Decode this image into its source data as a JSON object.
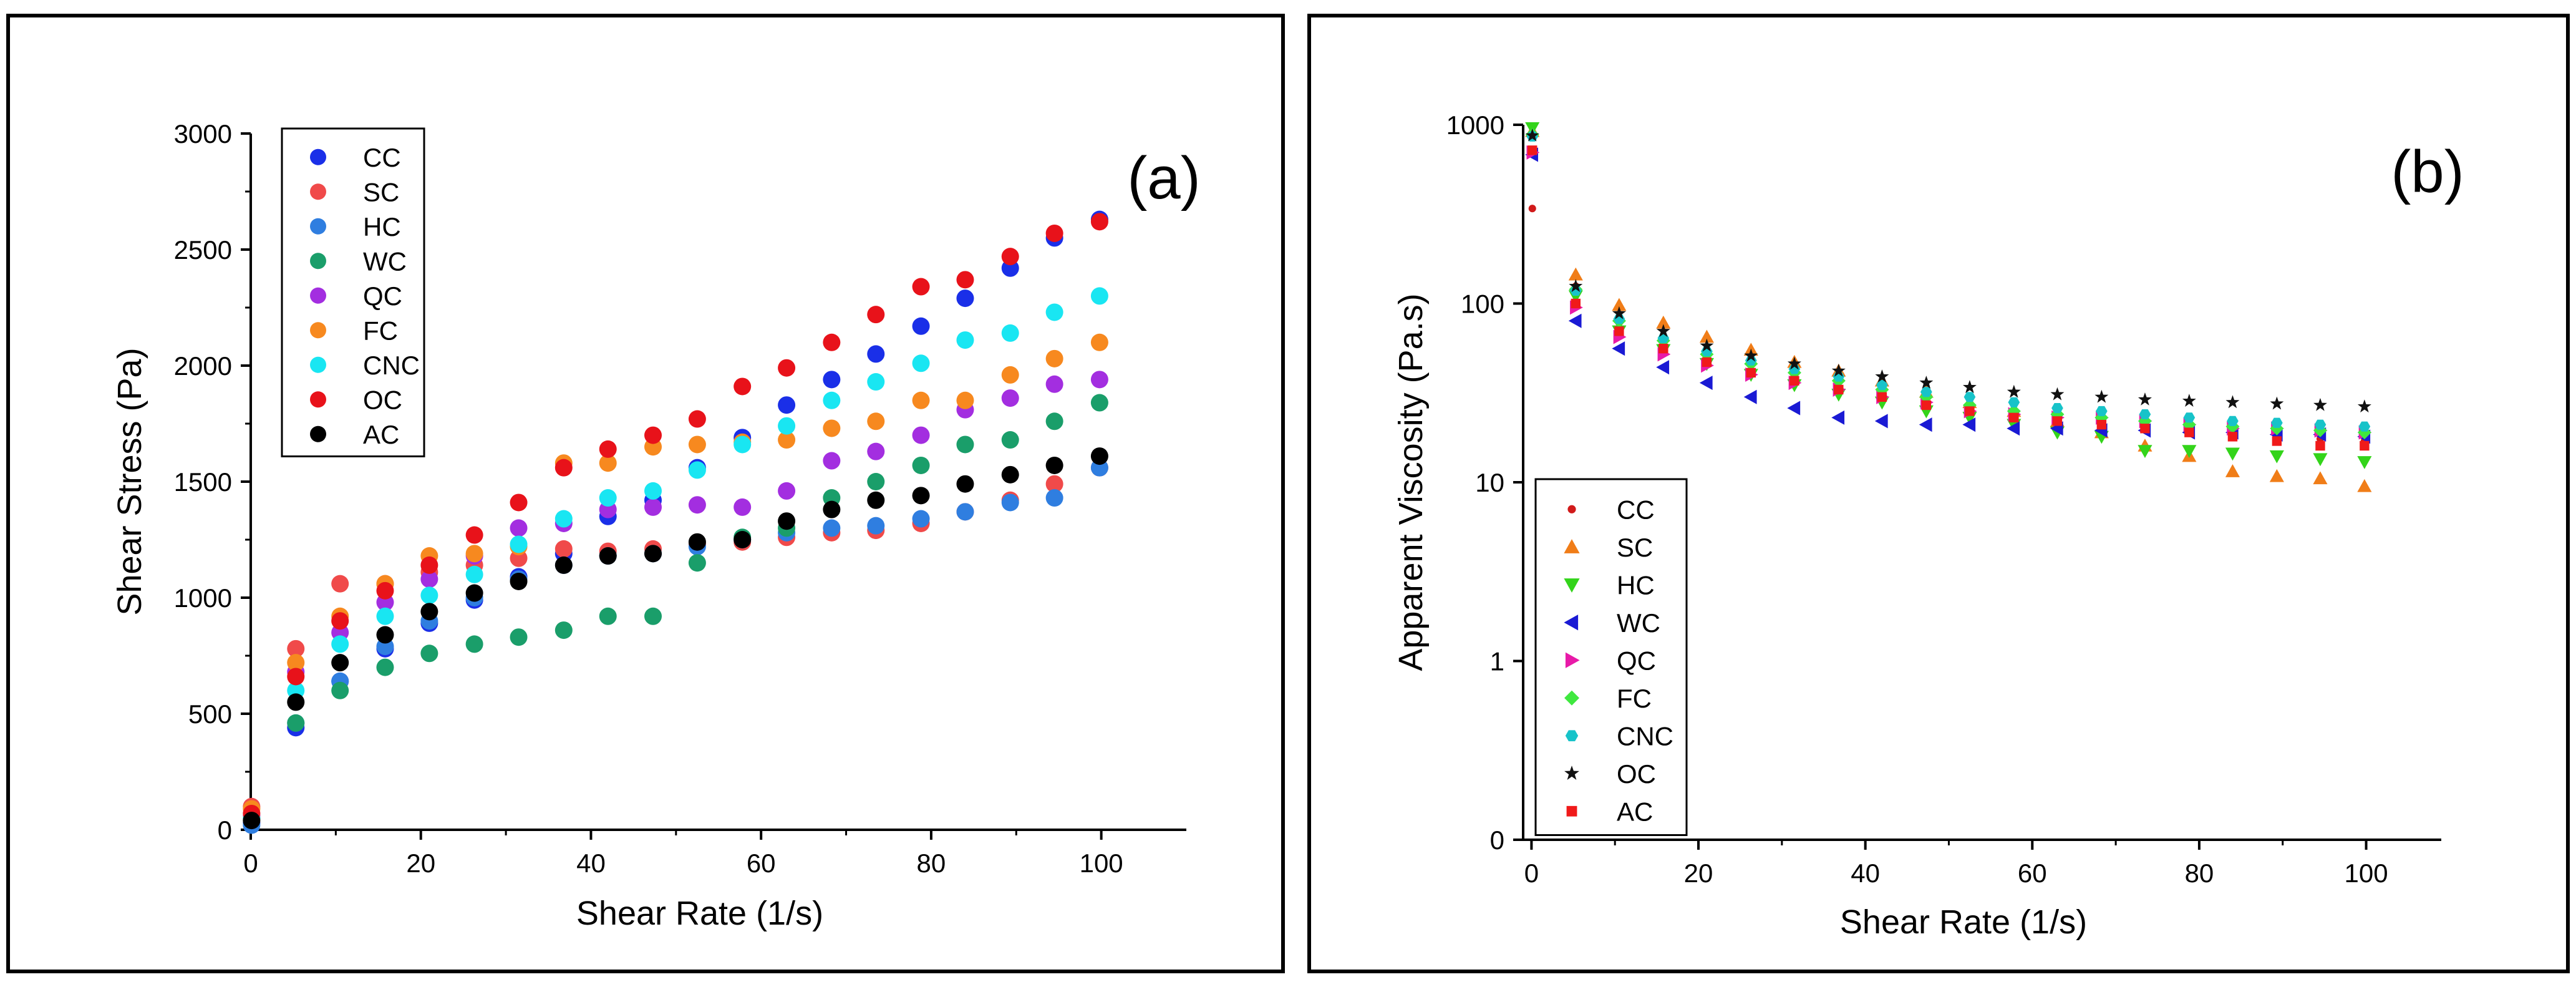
{
  "chart_data": [
    {
      "type": "scatter",
      "panel_label": "(a)",
      "xlabel": "Shear Rate (1/s)",
      "ylabel": "Shear Stress (Pa)",
      "xlim": [
        0,
        110
      ],
      "ylim": [
        0,
        3000
      ],
      "xticks": [
        0,
        20,
        40,
        60,
        80,
        100
      ],
      "yticks": [
        0,
        500,
        1000,
        1500,
        2000,
        2500,
        3000
      ],
      "xtick_labels": [
        "0",
        "20",
        "40",
        "60",
        "80",
        "100"
      ],
      "ytick_labels": [
        "0",
        "500",
        "1000",
        "1500",
        "2000",
        "2500",
        "3000"
      ],
      "legend_position": "top-left",
      "x": [
        0.1,
        5.3,
        10.5,
        15.8,
        21.0,
        26.3,
        31.5,
        36.8,
        42.0,
        47.3,
        52.5,
        57.8,
        63.0,
        68.3,
        73.5,
        78.8,
        84.0,
        89.3,
        94.5,
        99.8
      ],
      "series": [
        {
          "name": "CC",
          "color": "#1a2fe8",
          "marker": "circle",
          "values": [
            30,
            440,
            640,
            780,
            890,
            990,
            1090,
            1190,
            1350,
            1420,
            1560,
            1690,
            1830,
            1940,
            2050,
            2170,
            2290,
            2420,
            2550,
            2630
          ]
        },
        {
          "name": "SC",
          "color": "#f04a4a",
          "marker": "circle",
          "values": [
            100,
            780,
            1060,
            1060,
            1110,
            1140,
            1170,
            1210,
            1200,
            1210,
            1230,
            1240,
            1260,
            1280,
            1290,
            1320,
            1370,
            1420,
            1490,
            1560
          ]
        },
        {
          "name": "HC",
          "color": "#2f7ee0",
          "marker": "circle",
          "values": [
            20,
            460,
            640,
            790,
            900,
            1000,
            1080,
            1140,
            1180,
            1190,
            1220,
            1250,
            1280,
            1300,
            1310,
            1340,
            1370,
            1410,
            1430,
            1560
          ]
        },
        {
          "name": "WC",
          "color": "#1a9e6a",
          "marker": "circle",
          "values": [
            50,
            460,
            600,
            700,
            760,
            800,
            830,
            860,
            920,
            920,
            1150,
            1260,
            1300,
            1430,
            1500,
            1570,
            1660,
            1680,
            1760,
            1840
          ]
        },
        {
          "name": "QC",
          "color": "#a32ee0",
          "marker": "circle",
          "values": [
            60,
            680,
            850,
            980,
            1080,
            1180,
            1300,
            1320,
            1380,
            1390,
            1400,
            1390,
            1460,
            1590,
            1630,
            1700,
            1810,
            1860,
            1920,
            1940
          ]
        },
        {
          "name": "FC",
          "color": "#f7891f",
          "marker": "circle",
          "values": [
            90,
            720,
            920,
            1060,
            1180,
            1190,
            1220,
            1580,
            1580,
            1650,
            1660,
            1670,
            1680,
            1730,
            1760,
            1850,
            1850,
            1960,
            2030,
            2100
          ]
        },
        {
          "name": "CNC",
          "color": "#19e6f2",
          "marker": "circle",
          "values": [
            50,
            600,
            800,
            920,
            1010,
            1100,
            1230,
            1340,
            1430,
            1460,
            1550,
            1660,
            1740,
            1850,
            1930,
            2010,
            2110,
            2140,
            2230,
            2300
          ]
        },
        {
          "name": "OC",
          "color": "#e8121a",
          "marker": "circle",
          "values": [
            70,
            660,
            900,
            1030,
            1140,
            1270,
            1410,
            1560,
            1640,
            1700,
            1770,
            1910,
            1990,
            2100,
            2220,
            2340,
            2370,
            2470,
            2570,
            2620
          ]
        },
        {
          "name": "AC",
          "color": "#000000",
          "marker": "circle",
          "values": [
            40,
            550,
            720,
            840,
            940,
            1020,
            1070,
            1140,
            1180,
            1190,
            1240,
            1250,
            1330,
            1380,
            1420,
            1440,
            1490,
            1530,
            1570,
            1610
          ]
        }
      ]
    },
    {
      "type": "scatter",
      "panel_label": "(b)",
      "xlabel": "Shear Rate (1/s)",
      "ylabel": "Apparent Viscosity (Pa.s)",
      "xlim": [
        -1,
        109
      ],
      "ylim": [
        0.1,
        1000
      ],
      "yscale": "log",
      "xticks": [
        0,
        20,
        40,
        60,
        80,
        100
      ],
      "yticks": [
        0.1,
        1,
        10,
        100,
        1000
      ],
      "xtick_labels": [
        "0",
        "20",
        "40",
        "60",
        "80",
        "100"
      ],
      "ytick_labels": [
        "0",
        "1",
        "10",
        "100",
        "1000"
      ],
      "legend_position": "bottom-left",
      "x": [
        0.1,
        5.3,
        10.5,
        15.8,
        21.0,
        26.3,
        31.5,
        36.8,
        42.0,
        47.3,
        52.5,
        57.8,
        63.0,
        68.3,
        73.5,
        78.8,
        84.0,
        89.3,
        94.5,
        99.8
      ],
      "series": [
        {
          "name": "CC",
          "color": "#d11a1a",
          "marker": "dot",
          "values": [
            340,
            125,
            78,
            60,
            48,
            42,
            37,
            33,
            30,
            27,
            25,
            23,
            22,
            21,
            20,
            19,
            18.5,
            18,
            17.5,
            17
          ]
        },
        {
          "name": "SC",
          "color": "#f07d18",
          "marker": "triangle-up",
          "values": [
            920,
            145,
            98,
            78,
            65,
            55,
            47,
            42,
            37,
            32,
            28,
            25,
            22,
            19,
            16,
            14,
            11.5,
            10.8,
            10.5,
            9.5
          ]
        },
        {
          "name": "HC",
          "color": "#33d41a",
          "marker": "triangle-down",
          "values": [
            960,
            110,
            70,
            55,
            46,
            40,
            35,
            31,
            28,
            25,
            23,
            21,
            19,
            18,
            15,
            15,
            14.5,
            14,
            13.5,
            13
          ]
        },
        {
          "name": "WC",
          "color": "#1a1ad4",
          "marker": "triangle-left",
          "values": [
            680,
            80,
            56,
            44,
            36,
            30,
            26,
            23,
            22,
            21,
            21,
            20,
            20,
            19.5,
            19.5,
            19,
            19,
            18.5,
            18.5,
            18
          ]
        },
        {
          "name": "QC",
          "color": "#e81aa8",
          "marker": "triangle-right",
          "values": [
            700,
            95,
            65,
            52,
            45,
            40,
            36,
            33,
            30,
            28,
            25,
            24,
            23,
            23,
            22,
            21,
            20,
            20,
            19.5,
            19
          ]
        },
        {
          "name": "FC",
          "color": "#3fe83f",
          "marker": "diamond",
          "values": [
            880,
            120,
            80,
            62,
            52,
            46,
            41,
            37,
            33,
            30,
            27,
            25,
            24,
            23,
            22,
            21,
            20.5,
            20,
            19.5,
            19
          ]
        },
        {
          "name": "CNC",
          "color": "#17c3c9",
          "marker": "hexagon",
          "values": [
            860,
            118,
            82,
            64,
            54,
            48,
            43,
            39,
            35,
            32,
            30,
            28,
            26,
            25,
            24,
            23,
            22,
            21.5,
            21,
            20.5
          ]
        },
        {
          "name": "OC",
          "color": "#111111",
          "marker": "star",
          "values": [
            870,
            125,
            88,
            70,
            58,
            51,
            46,
            42,
            39,
            36,
            34,
            32,
            31,
            30,
            29,
            28.5,
            28,
            27.5,
            27,
            26.5
          ]
        },
        {
          "name": "AC",
          "color": "#f01a1a",
          "marker": "square",
          "values": [
            720,
            100,
            70,
            56,
            47,
            41,
            37,
            33,
            30,
            27,
            25,
            23,
            22,
            21,
            20,
            19,
            18,
            17,
            16,
            16
          ]
        }
      ]
    }
  ]
}
